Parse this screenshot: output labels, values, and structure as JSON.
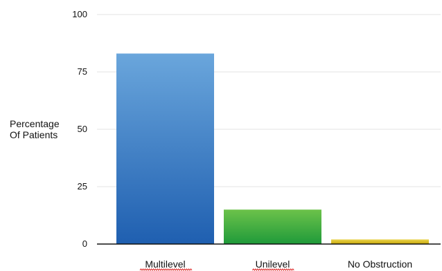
{
  "chart_data": {
    "type": "bar",
    "categories": [
      "Multilevel",
      "Unilevel",
      "No Obstruction"
    ],
    "values": [
      83,
      15,
      2
    ],
    "title": "",
    "xlabel": "",
    "ylabel": "Percentage Of Patients",
    "ylabel_lines": [
      "Percentage",
      "Of Patients"
    ],
    "ylim": [
      0,
      100
    ],
    "yticks": [
      0,
      25,
      50,
      75,
      100
    ],
    "grid": true,
    "colors": {
      "bars": [
        {
          "top": "#6aa6dc",
          "bottom": "#1f5fb0"
        },
        {
          "top": "#6cc24a",
          "bottom": "#1f9a3a"
        },
        {
          "top": "#ead34a",
          "bottom": "#c9a90c"
        }
      ],
      "grid": "#e3e3e3",
      "axis": "#111111"
    },
    "spellcheck_marked": [
      "Multilevel",
      "Unilevel"
    ]
  }
}
